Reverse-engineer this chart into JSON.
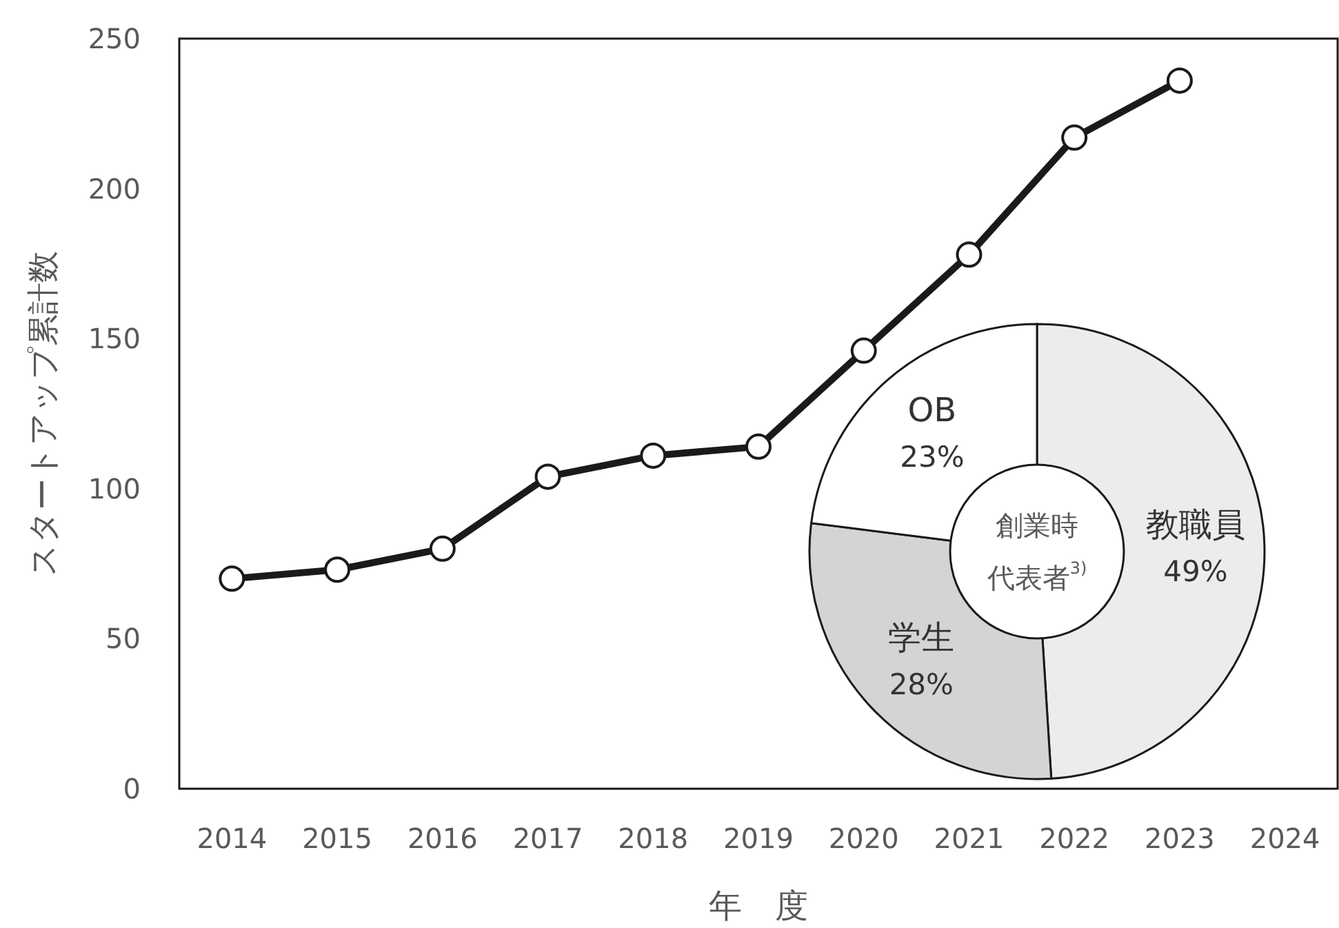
{
  "chart_data": [
    {
      "type": "line",
      "xlabel": "年　度",
      "ylabel": "スタートアップ累計数",
      "categories": [
        "2014",
        "2015",
        "2016",
        "2017",
        "2018",
        "2019",
        "2020",
        "2021",
        "2022",
        "2023",
        "2024"
      ],
      "series": [
        {
          "color": "#1a1a1a",
          "values": [
            70,
            73,
            80,
            104,
            111,
            114,
            146,
            178,
            217,
            236,
            null
          ]
        }
      ],
      "ylim": [
        0,
        250
      ],
      "yticks": [
        0,
        50,
        100,
        150,
        200,
        250
      ],
      "marker": "circle",
      "line_style": "solid",
      "grid": false
    },
    {
      "type": "donut",
      "categories": [
        "教職員",
        "学生",
        "OB"
      ],
      "values": [
        49,
        28,
        23
      ],
      "value_labels": [
        "49%",
        "28%",
        "23%"
      ],
      "colors": [
        "#ececec",
        "#d4d4d4",
        "#ffffff"
      ],
      "annotations": [
        "創業時",
        "代表者$^{3)}$"
      ]
    }
  ]
}
